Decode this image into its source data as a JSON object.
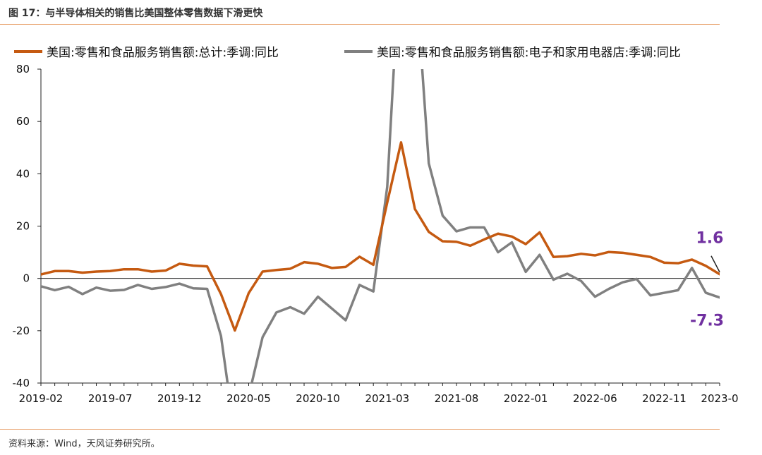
{
  "figure": {
    "title": "图 17：与半导体相关的销售比美国整体零售数据下滑更快",
    "source": "资料来源：Wind，天风证券研究所。"
  },
  "chart_data": {
    "type": "line",
    "x": [
      "2019-02",
      "2019-03",
      "2019-04",
      "2019-05",
      "2019-06",
      "2019-07",
      "2019-08",
      "2019-09",
      "2019-10",
      "2019-11",
      "2019-12",
      "2020-01",
      "2020-02",
      "2020-03",
      "2020-04",
      "2020-05",
      "2020-06",
      "2020-07",
      "2020-08",
      "2020-09",
      "2020-10",
      "2020-11",
      "2020-12",
      "2021-01",
      "2021-02",
      "2021-03",
      "2021-04",
      "2021-05",
      "2021-06",
      "2021-07",
      "2021-08",
      "2021-09",
      "2021-10",
      "2021-11",
      "2021-12",
      "2022-01",
      "2022-02",
      "2022-03",
      "2022-04",
      "2022-05",
      "2022-06",
      "2022-07",
      "2022-08",
      "2022-09",
      "2022-10",
      "2022-11",
      "2022-12",
      "2023-01",
      "2023-02",
      "2023-03"
    ],
    "x_tick_labels": [
      "2019-02",
      "2019-07",
      "2019-12",
      "2020-05",
      "2020-10",
      "2021-03",
      "2021-08",
      "2022-01",
      "2022-06",
      "2022-11",
      "2023-0"
    ],
    "x_tick_indices": [
      0,
      5,
      10,
      15,
      20,
      25,
      30,
      35,
      40,
      45,
      49
    ],
    "ylim": [
      -40,
      80
    ],
    "yticks": [
      -40,
      -20,
      0,
      20,
      40,
      60,
      80
    ],
    "ytick_labels": [
      "-40",
      "-20",
      "0",
      "20",
      "40",
      "60",
      "80"
    ],
    "series": [
      {
        "name": "美国:零售和食品服务销售额:总计:季调:同比",
        "color": "#c55a11",
        "values": [
          1.5,
          2.8,
          2.8,
          2.2,
          2.6,
          2.8,
          3.5,
          3.5,
          2.6,
          3.0,
          5.6,
          4.9,
          4.6,
          -6.0,
          -19.9,
          -5.6,
          2.6,
          3.2,
          3.7,
          6.2,
          5.6,
          4.0,
          4.4,
          8.3,
          5.2,
          29.0,
          52.0,
          26.5,
          17.8,
          14.2,
          14.0,
          12.5,
          14.9,
          17.1,
          16.0,
          13.1,
          17.6,
          8.2,
          8.5,
          9.4,
          8.8,
          10.1,
          9.8,
          9.0,
          8.2,
          6.0,
          5.8,
          7.2,
          4.8,
          1.6
        ]
      },
      {
        "name": "美国:零售和食品服务销售额:电子和家用电器店:季调:同比",
        "color": "#808080",
        "values": [
          -3.0,
          -4.5,
          -3.2,
          -6.0,
          -3.5,
          -4.7,
          -4.4,
          -2.5,
          -4.0,
          -3.3,
          -2.0,
          -3.8,
          -4.0,
          -22.0,
          -60.0,
          -45.0,
          -22.5,
          -13.0,
          -11.0,
          -13.5,
          -7.0,
          -11.5,
          -16.0,
          -2.5,
          -5.0,
          35.0,
          130.0,
          120.0,
          44.0,
          24.0,
          18.0,
          19.5,
          19.5,
          10.0,
          13.8,
          2.5,
          9.0,
          -0.5,
          1.8,
          -1.0,
          -7.0,
          -4.0,
          -1.5,
          -0.2,
          -6.5,
          -5.5,
          -4.5,
          4.0,
          -5.5,
          -7.3
        ]
      }
    ],
    "annotations": [
      {
        "text": "1.6",
        "series": 0,
        "index": 49
      },
      {
        "text": "-7.3",
        "series": 1,
        "index": 49
      }
    ]
  }
}
